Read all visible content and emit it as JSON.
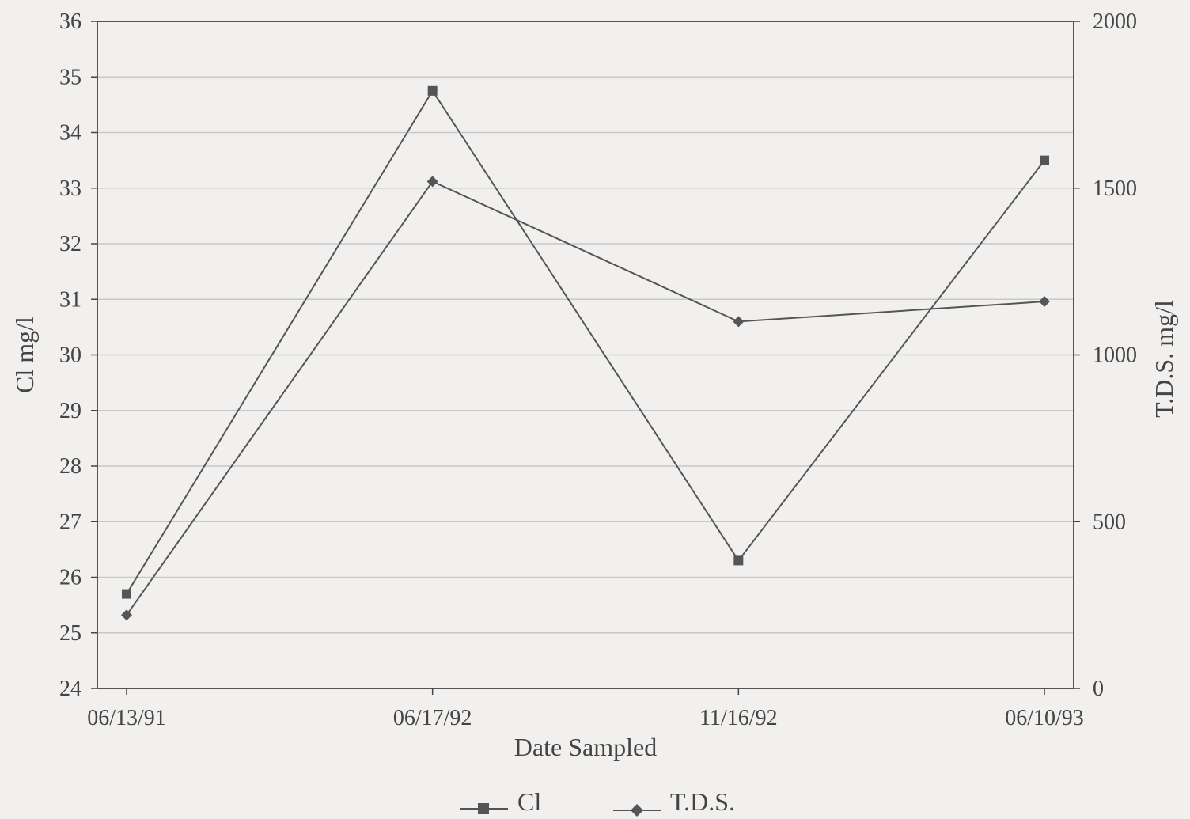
{
  "chart_data": {
    "type": "line",
    "title": "",
    "xlabel": "Date Sampled",
    "ylabel": "Cl mg/l",
    "y2label": "T.D.S. mg/l",
    "categories": [
      "06/13/91",
      "06/17/92",
      "11/16/92",
      "06/10/93"
    ],
    "ylim": [
      24,
      36
    ],
    "y2lim": [
      0,
      2000
    ],
    "yticks": [
      24,
      25,
      26,
      27,
      28,
      29,
      30,
      31,
      32,
      33,
      34,
      35,
      36
    ],
    "y2ticks": [
      0,
      500,
      1000,
      1500,
      2000
    ],
    "grid": true,
    "legend_position": "bottom",
    "series": [
      {
        "name": "Cl",
        "axis": "left",
        "marker": "square",
        "values": [
          25.7,
          34.75,
          26.3,
          33.5
        ]
      },
      {
        "name": "T.D.S.",
        "axis": "right",
        "marker": "diamond",
        "values": [
          220,
          1520,
          1100,
          1160
        ]
      }
    ],
    "colors": {
      "line": "#555555",
      "grid": "#c8c8c8",
      "axis": "#444444"
    }
  }
}
